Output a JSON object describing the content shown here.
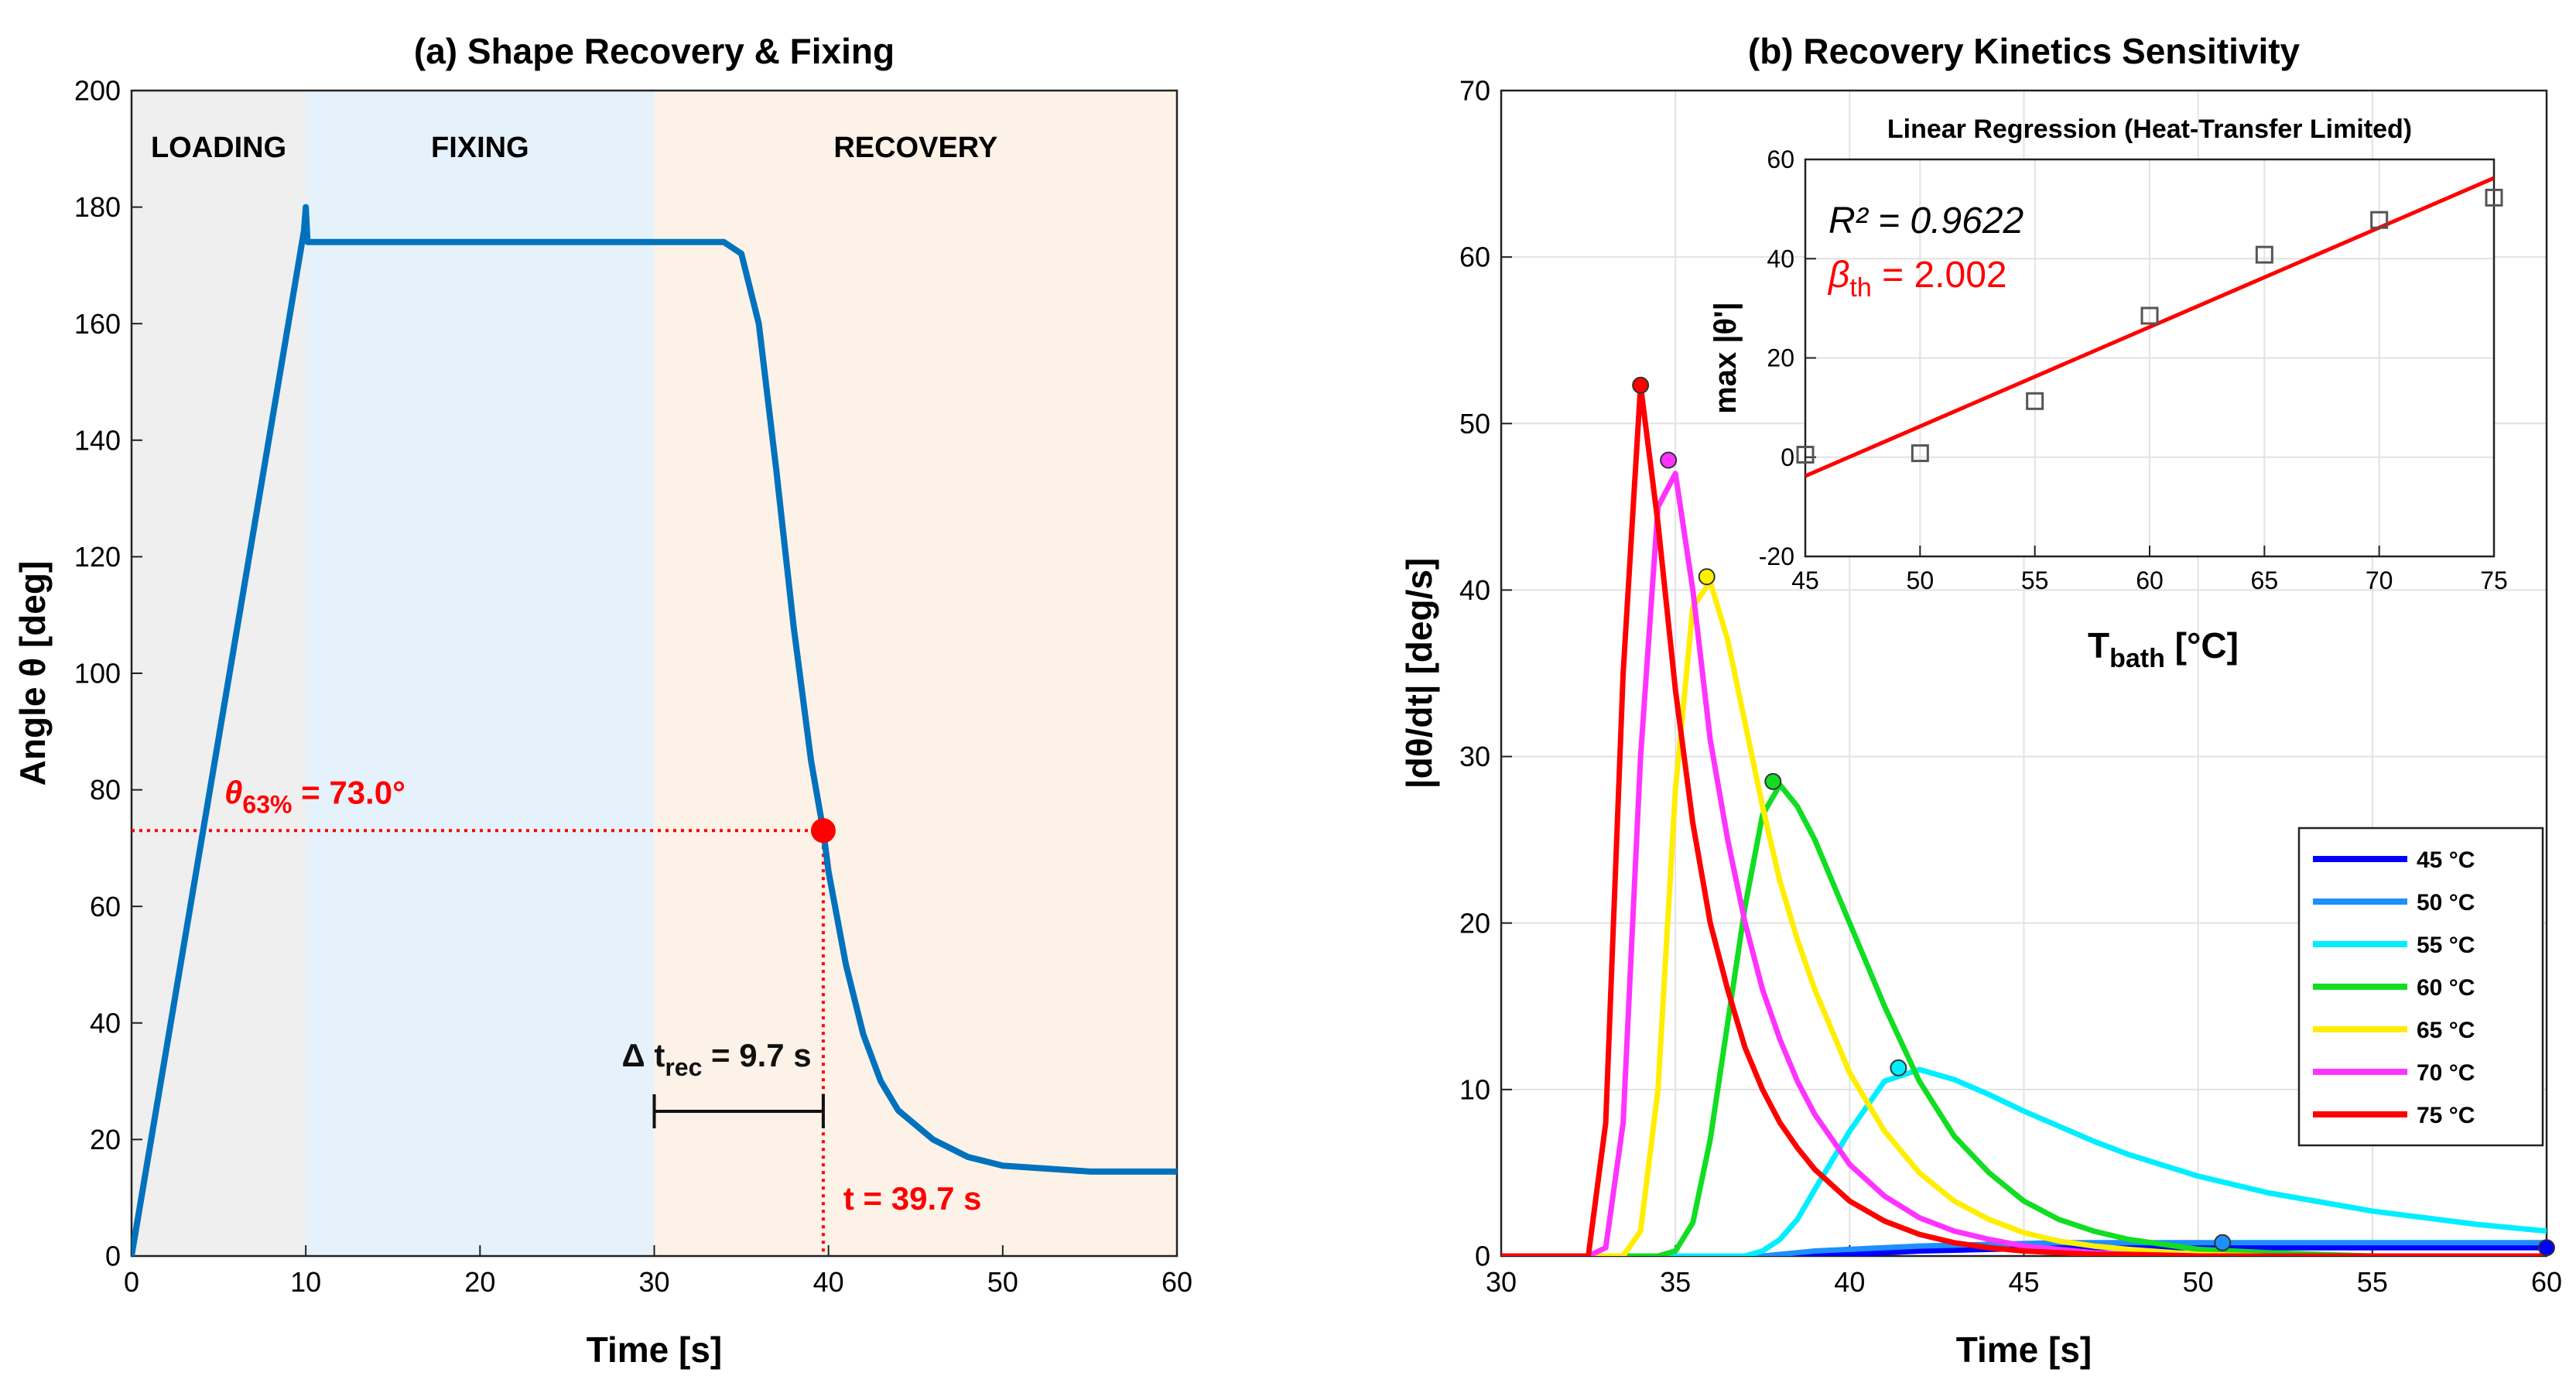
{
  "chart_data": [
    {
      "type": "line",
      "title": "(a) Shape Recovery & Fixing",
      "xlabel": "Time [s]",
      "ylabel": "Angle θ [deg]",
      "xlim": [
        0,
        60
      ],
      "ylim": [
        0,
        200
      ],
      "xticks": [
        0,
        10,
        20,
        30,
        40,
        50,
        60
      ],
      "yticks": [
        0,
        20,
        40,
        60,
        80,
        100,
        120,
        140,
        160,
        180,
        200
      ],
      "grid": false,
      "color": "#0072BD",
      "x": [
        0,
        9.9,
        10,
        10.1,
        34,
        35,
        36,
        37,
        38,
        39,
        39.7,
        40,
        41,
        42,
        43,
        44,
        46,
        48,
        50,
        55,
        60
      ],
      "values": [
        0,
        176,
        180,
        174,
        174,
        172,
        160,
        135,
        108,
        85,
        73,
        66,
        50,
        38,
        30,
        25,
        20,
        17,
        15.5,
        14.5,
        14.5
      ],
      "regions": [
        {
          "label": "LOADING",
          "range": [
            0,
            10
          ],
          "color": "#efefef"
        },
        {
          "label": "FIXING",
          "range": [
            10,
            30
          ],
          "color": "#e6f2fb"
        },
        {
          "label": "RECOVERY",
          "range": [
            30,
            60
          ],
          "color": "#fdf2e8"
        }
      ],
      "marker": {
        "x": 39.7,
        "y": 73.0,
        "color": "#ff0000"
      },
      "marker_label": {
        "symbol": "θ",
        "sub": "63%",
        "text": " = 73.0°"
      },
      "time_label": "t = 39.7 s",
      "interval_label": {
        "symbol": "Δ t",
        "sub": "rec",
        "text": " = 9.7 s"
      }
    },
    {
      "type": "line",
      "title": "(b) Recovery Kinetics Sensitivity",
      "xlabel": "Time [s]",
      "ylabel": "|dθ/dt| [deg/s]",
      "xlim": [
        30,
        60
      ],
      "ylim": [
        0,
        70
      ],
      "xticks": [
        30,
        35,
        40,
        45,
        50,
        55,
        60
      ],
      "yticks": [
        0,
        10,
        20,
        30,
        40,
        50,
        60,
        70
      ],
      "grid": true,
      "legend": "right",
      "x": [
        30,
        32,
        32.5,
        33,
        33.5,
        34,
        34.5,
        35,
        35.5,
        36,
        36.5,
        37,
        37.5,
        38,
        38.5,
        39,
        40,
        41,
        42,
        43,
        44,
        45,
        46,
        47,
        48,
        50,
        52,
        55,
        58,
        60
      ],
      "series": [
        {
          "name": "45 °C",
          "color": "#0000ff",
          "values": [
            0,
            0,
            0,
            0,
            0,
            0,
            0,
            0,
            0,
            0,
            0,
            0,
            0,
            0,
            0,
            0,
            0.1,
            0.2,
            0.3,
            0.35,
            0.4,
            0.45,
            0.5,
            0.5,
            0.5,
            0.5,
            0.5,
            0.5,
            0.5,
            0.5
          ],
          "peak": {
            "x": 60,
            "y": 0.5
          }
        },
        {
          "name": "50 °C",
          "color": "#1e8fff",
          "values": [
            0,
            0,
            0,
            0,
            0,
            0,
            0,
            0,
            0,
            0,
            0,
            0,
            0,
            0.1,
            0.2,
            0.3,
            0.4,
            0.5,
            0.6,
            0.65,
            0.7,
            0.75,
            0.8,
            0.8,
            0.8,
            0.8,
            0.8,
            0.8,
            0.8,
            0.8
          ],
          "peak": {
            "x": 50.7,
            "y": 0.8
          }
        },
        {
          "name": "55 °C",
          "color": "#00eeff",
          "values": [
            0,
            0,
            0,
            0,
            0,
            0,
            0,
            0,
            0,
            0,
            0,
            0,
            0.3,
            1,
            2.2,
            4,
            7.5,
            10.5,
            11.2,
            10.6,
            9.7,
            8.7,
            7.8,
            6.9,
            6.1,
            4.8,
            3.8,
            2.7,
            1.9,
            1.5
          ],
          "peak": {
            "x": 41.4,
            "y": 11.3
          }
        },
        {
          "name": "60 °C",
          "color": "#11dd22",
          "values": [
            0,
            0,
            0,
            0,
            0,
            0,
            0,
            0.3,
            2,
            7,
            14,
            21,
            26.5,
            28.3,
            27,
            25,
            20,
            15,
            10.5,
            7.2,
            5,
            3.3,
            2.2,
            1.5,
            1,
            0.4,
            0.2,
            0,
            0,
            0
          ],
          "peak": {
            "x": 37.8,
            "y": 28.5
          }
        },
        {
          "name": "65 °C",
          "color": "#ffee00",
          "values": [
            0,
            0,
            0,
            0,
            0,
            1.5,
            10,
            28,
            39,
            40.5,
            37,
            32,
            27,
            22.5,
            19,
            16,
            11,
            7.5,
            5,
            3.3,
            2.2,
            1.4,
            0.9,
            0.6,
            0.4,
            0.1,
            0,
            0,
            0,
            0
          ],
          "peak": {
            "x": 35.9,
            "y": 40.8
          }
        },
        {
          "name": "70 °C",
          "color": "#ff33ff",
          "values": [
            0,
            0,
            0,
            0.5,
            8,
            30,
            45,
            47,
            40,
            31,
            25,
            20,
            16,
            13,
            10.5,
            8.5,
            5.5,
            3.6,
            2.3,
            1.5,
            1,
            0.6,
            0.4,
            0.2,
            0.1,
            0,
            0,
            0,
            0,
            0
          ],
          "peak": {
            "x": 34.8,
            "y": 47.8
          }
        },
        {
          "name": "75 °C",
          "color": "#ff0000",
          "values": [
            0,
            0,
            0,
            8,
            35,
            52.3,
            44,
            34,
            26,
            20,
            16,
            12.5,
            10,
            8,
            6.5,
            5.2,
            3.3,
            2.1,
            1.3,
            0.8,
            0.5,
            0.3,
            0.2,
            0.1,
            0.1,
            0,
            0,
            0,
            0,
            0
          ],
          "peak": {
            "x": 34,
            "y": 52.3
          }
        }
      ]
    },
    {
      "type": "scatter",
      "title": "Linear Regression (Heat-Transfer Limited)",
      "xlabel": {
        "symbol": "T",
        "sub": "bath",
        "text": " [°C]"
      },
      "ylabel": "max |θ'|",
      "xlim": [
        45,
        75
      ],
      "ylim": [
        -20,
        60
      ],
      "xticks": [
        45,
        50,
        55,
        60,
        65,
        70,
        75
      ],
      "yticks": [
        -20,
        0,
        20,
        40,
        60
      ],
      "grid": true,
      "color": "#555555",
      "x": [
        45,
        50,
        55,
        60,
        65,
        70,
        75
      ],
      "values": [
        0.5,
        0.8,
        11.3,
        28.5,
        40.8,
        47.8,
        52.3
      ],
      "fit": {
        "color": "#ff0000",
        "x": [
          45,
          75
        ],
        "values": [
          -3.8,
          56.26
        ]
      },
      "r2_label": "R² = 0.9622",
      "beta_label": {
        "symbol": "β",
        "sub": "th",
        "text": " = 2.002"
      }
    }
  ]
}
